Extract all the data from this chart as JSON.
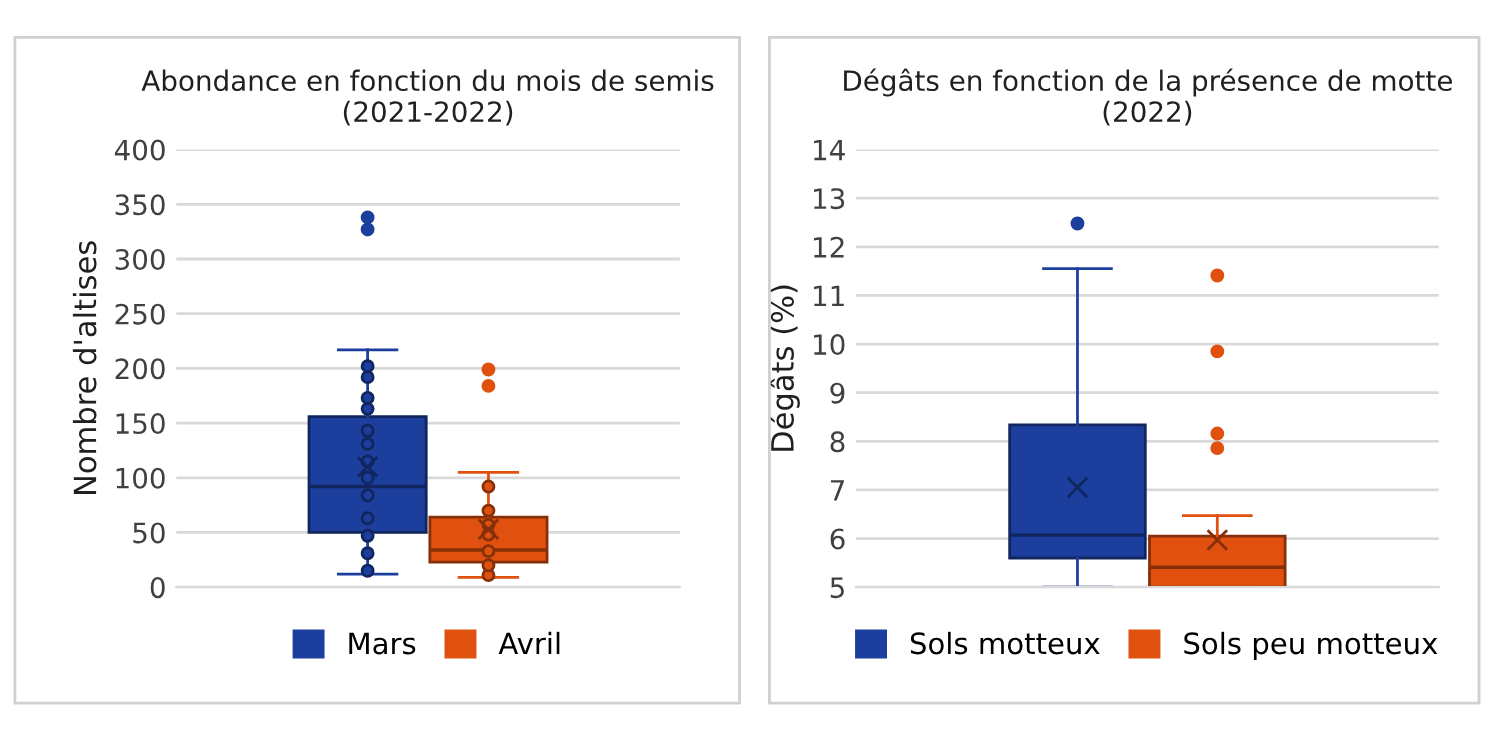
{
  "chart_data": [
    {
      "type": "box",
      "title": "Abondance en fonction du mois de semis\n(2021-2022)",
      "ylabel": "Nombre d'altises",
      "categories": [
        null
      ],
      "ylim": [
        0,
        400
      ],
      "yticks": [
        0,
        50,
        100,
        150,
        200,
        250,
        300,
        350,
        400
      ],
      "grid": "y",
      "legend": "bottom",
      "series": [
        {
          "name": "Mars",
          "color": "#1c3f9e",
          "boxes": [
            {
              "low": 12,
              "q1": 50,
              "median": 92,
              "q3": 156,
              "high": 217,
              "mean": 110,
              "outliers": [
                327,
                338
              ]
            }
          ]
        },
        {
          "name": "Avril",
          "color": "#e0500f",
          "boxes": [
            {
              "low": 9,
              "q1": 23,
              "median": 34,
              "q3": 64,
              "high": 105,
              "mean": 53,
              "outliers": [
                184,
                199
              ]
            }
          ]
        },
        {
          "type": "scatter",
          "color": "#1c3f9e",
          "x": [
            null,
            null,
            null,
            null,
            null,
            null,
            null,
            null,
            null,
            null,
            null,
            null,
            null
          ],
          "values": [
            15,
            31,
            47,
            63,
            84,
            100,
            115,
            131,
            143,
            163,
            173,
            192,
            202
          ]
        },
        {
          "type": "scatter",
          "color": "#e0500f",
          "x": [
            null,
            null,
            null,
            null,
            null,
            null,
            null
          ],
          "values": [
            11,
            20,
            33,
            48,
            57,
            70,
            92
          ]
        }
      ]
    },
    {
      "type": "box",
      "title": "Dégâts en fonction de la présence de motte\n(2022)",
      "ylabel": "Dégâts (%)",
      "categories": [
        null
      ],
      "ylim": [
        5,
        14
      ],
      "yticks": [
        5,
        6,
        7,
        8,
        9,
        10,
        11,
        12,
        13,
        14
      ],
      "grid": "y",
      "legend": "bottom",
      "series": [
        {
          "name": "Sols motteux",
          "color": "#1c3f9e",
          "boxes": [
            {
              "low": 5.0,
              "q1": 5.6,
              "median": 6.07,
              "q3": 8.34,
              "high": 11.55,
              "mean": 7.05,
              "outliers": [
                12.48
              ]
            }
          ]
        },
        {
          "name": "Sols peu motteux",
          "color": "#e0500f",
          "boxes": [
            {
              "low": 5.0,
              "q1": 5.0,
              "median": 5.41,
              "q3": 6.05,
              "high": 6.47,
              "mean": 5.97,
              "outliers": [
                7.86,
                8.16,
                9.85,
                11.41
              ]
            }
          ]
        }
      ]
    }
  ]
}
